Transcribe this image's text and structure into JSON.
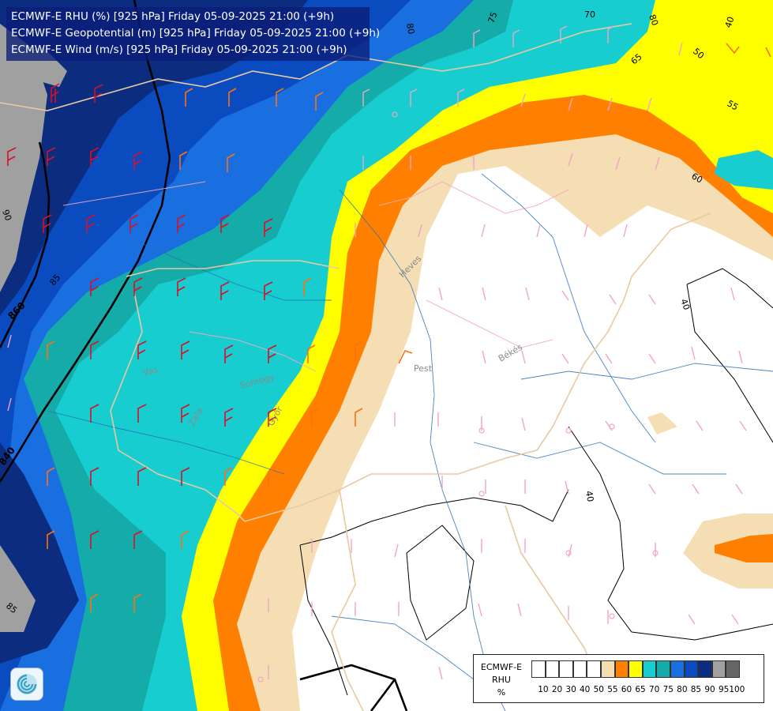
{
  "header": {
    "line1": "ECMWF-E RHU (%) [925 hPa] Friday 05-09-2025 21:00 (+9h)",
    "line2": "ECMWF-E Geopotential (m) [925 hPa] Friday 05-09-2025 21:00 (+9h)",
    "line3": "ECMWF-E Wind (m/s) [925 hPa] Friday 05-09-2025 21:00 (+9h)"
  },
  "map_labels": {
    "contour_80": "80",
    "contour_75": "75",
    "contour_70": "70",
    "contour_65": "65",
    "contour_60": "60",
    "contour_55": "55",
    "contour_50": "50",
    "contour_40_ne": "40",
    "contour_40_e": "40",
    "contour_40_s": "40",
    "contour_90": "90",
    "contour_85_w": "85",
    "contour_85_sw": "85",
    "geo_860": "860",
    "geo_840": "840",
    "region_heves": "Heves",
    "region_pest": "Pest",
    "region_bekes": "Békés",
    "region_vas": "Vas",
    "region_zala": "Zala",
    "region_somogy": "Somogy",
    "region_gyor": "Győr"
  },
  "legend": {
    "title1": "ECMWF-E",
    "title2": "RHU",
    "title3": "%",
    "colors": [
      "#ffffff",
      "#ffffff",
      "#ffffff",
      "#ffffff",
      "#ffffff",
      "#f5deb3",
      "#ff8000",
      "#ffff00",
      "#17cdd0",
      "#15aba9",
      "#1a6fe0",
      "#0a4cc0",
      "#0c2c80",
      "#a0a0a0",
      "#666666"
    ],
    "ticks": [
      "10",
      "20",
      "30",
      "40",
      "50",
      "55",
      "60",
      "65",
      "70",
      "75",
      "80",
      "85",
      "90",
      "95",
      "100"
    ]
  },
  "logo_icon": "ecmwf-swirl-icon"
}
